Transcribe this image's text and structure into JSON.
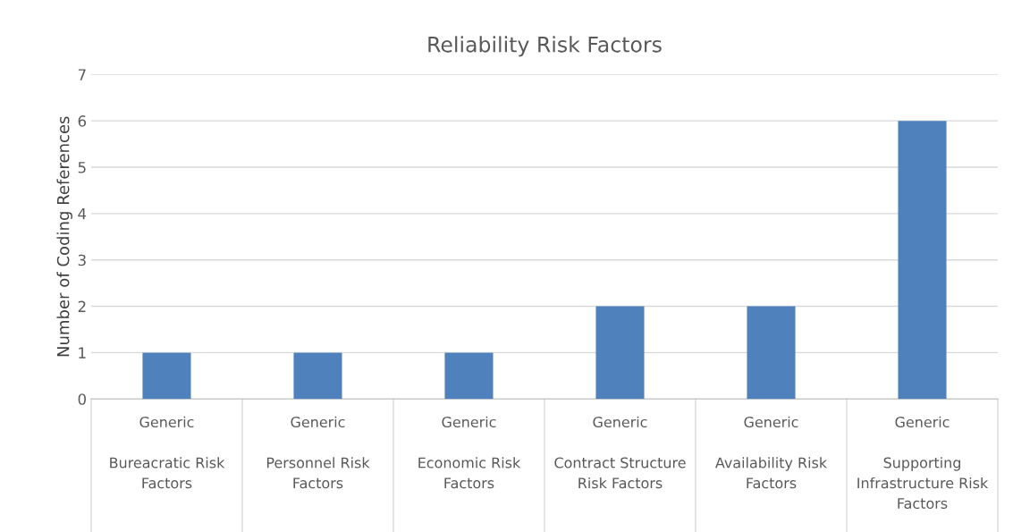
{
  "chart_data": {
    "type": "bar",
    "title": "Reliability Risk Factors",
    "ylabel": "Number of Coding References",
    "categories": [
      "Generic\n\nBureacratic Risk\nFactors",
      "Generic\n\nPersonnel Risk\nFactors",
      "Generic\n\nEconomic Risk\nFactors",
      "Generic\n\nContract Structure\nRisk Factors",
      "Generic\n\nAvailability Risk\nFactors",
      "Generic\n\nSupporting\nInfrastructure Risk\nFactors"
    ],
    "values": [
      1,
      1,
      1,
      2,
      2,
      6
    ],
    "color": "#4f81bd",
    "ylim": [
      0,
      7
    ],
    "yticks": [
      0,
      1,
      2,
      3,
      4,
      5,
      6,
      7
    ],
    "grid": "y",
    "legend": false
  }
}
